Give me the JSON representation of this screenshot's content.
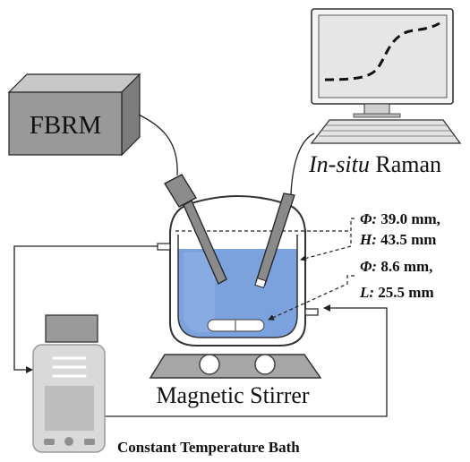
{
  "labels": {
    "fbrm": "FBRM",
    "raman_italic": "In-situ",
    "raman_rest": " Raman",
    "vessel_sym": "Φ:",
    "vessel_d": " 39.0 mm,",
    "vessel_hsym": "H:",
    "vessel_h": " 43.5 mm",
    "stirbar_sym": "Φ:",
    "stirbar_d": " 8.6 mm,",
    "stirbar_lsym": "L:",
    "stirbar_l": " 25.5 mm",
    "stirrer": "Magnetic Stirrer",
    "bath": "Constant Temperature Bath"
  },
  "colors": {
    "box_front": "#999999",
    "box_top": "#c8c8c8",
    "box_side": "#7d7d7d",
    "liquid": "#7ba2dc",
    "liquid_light": "#a9c4ec",
    "vessel_stroke": "#333333",
    "stirrer_plate": "#a6a6a6",
    "bath_body": "#d9d9d9",
    "bath_inner": "#bdbdbd",
    "line": "#222222"
  },
  "icons": {
    "monitor": "monitor-icon",
    "keyboard": "keyboard-icon",
    "bath_device": "bath-device-icon"
  }
}
